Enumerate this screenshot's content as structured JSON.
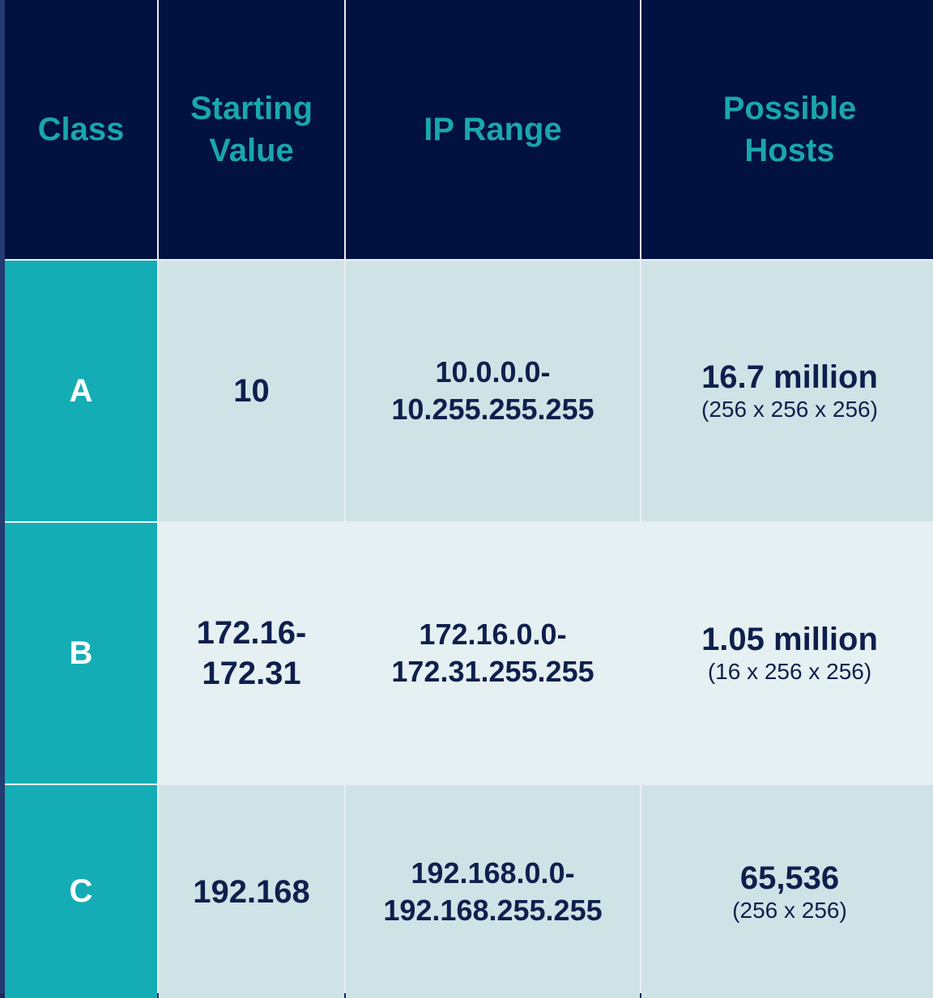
{
  "headers": {
    "class": "Class",
    "starting_value_line1": "Starting",
    "starting_value_line2": "Value",
    "ip_range": "IP Range",
    "possible_hosts_line1": "Possible",
    "possible_hosts_line2": "Hosts"
  },
  "rows": [
    {
      "class": "A",
      "starting_value_line1": "10",
      "starting_value_line2": "",
      "ip_range_line1": "10.0.0.0-",
      "ip_range_line2": "10.255.255.255",
      "hosts": "16.7 million",
      "hosts_calc": "(256 x 256 x 256)"
    },
    {
      "class": "B",
      "starting_value_line1": "172.16-",
      "starting_value_line2": "172.31",
      "ip_range_line1": "172.16.0.0-",
      "ip_range_line2": "172.31.255.255",
      "hosts": "1.05 million",
      "hosts_calc": "(16 x 256 x 256)"
    },
    {
      "class": "C",
      "starting_value_line1": "192.168",
      "starting_value_line2": "",
      "ip_range_line1": "192.168.0.0-",
      "ip_range_line2": "192.168.255.255",
      "hosts": "65,536",
      "hosts_calc": "(256 x 256)"
    }
  ],
  "colors": {
    "header_bg": "#011140",
    "header_text": "#1aa6ad",
    "class_column_bg": "#15adb5",
    "row_a_c_bg": "#cfe3e7",
    "row_b_bg": "#e5f0f2",
    "data_text": "#0f1f4d"
  }
}
